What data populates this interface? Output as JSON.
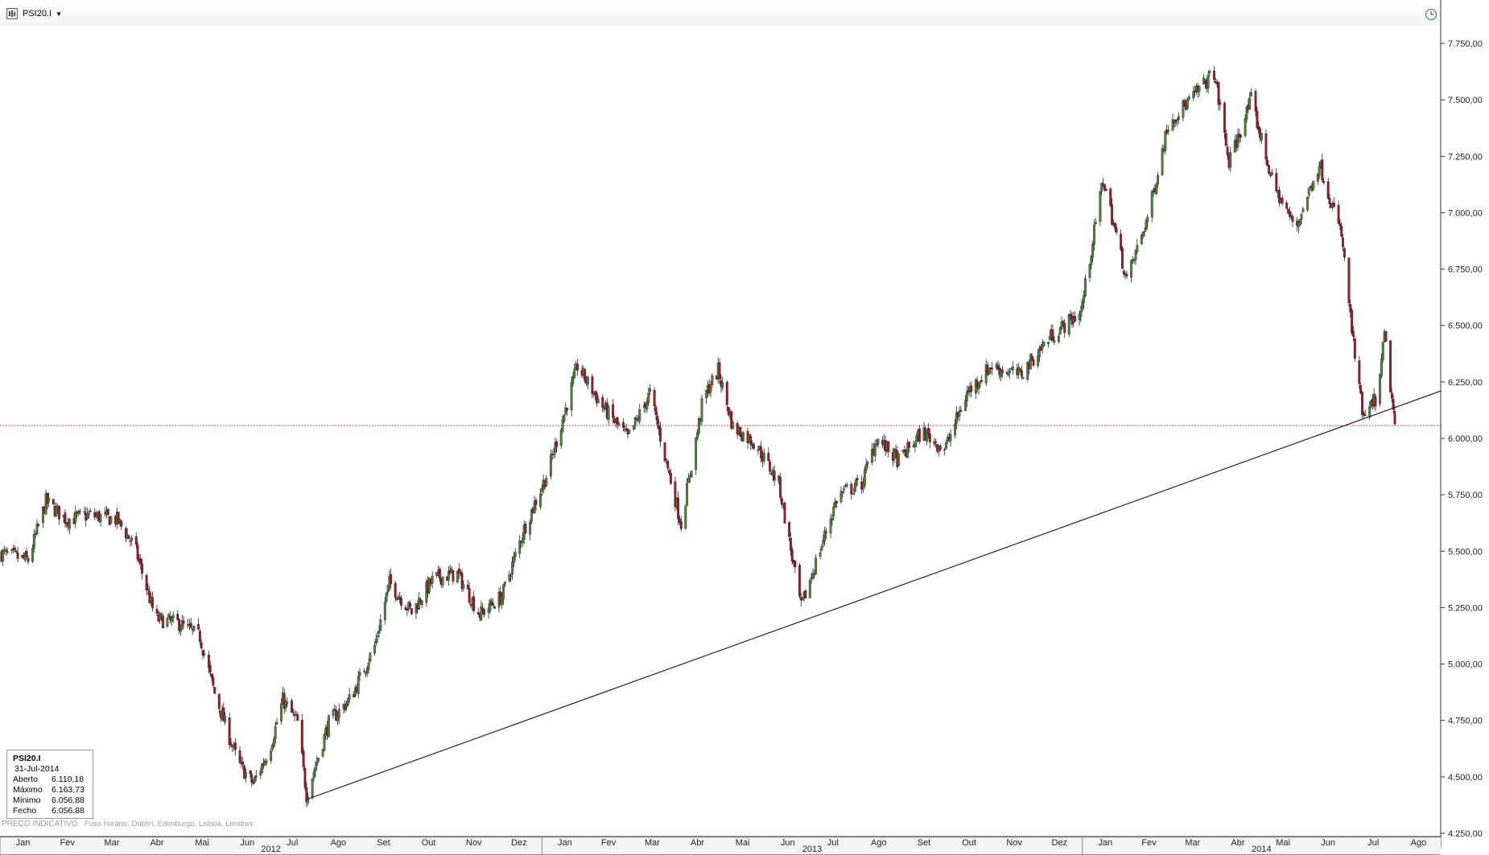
{
  "toolbar": {
    "symbol": "PSI20.I",
    "dropdown_icon": "caret-down-icon",
    "settings_icon": "clock-icon"
  },
  "footer": {
    "note": "PREÇO INDICATIVO",
    "timezone": "Fuso horário: Dublin, Edimburgo, Lisboa, Londres"
  },
  "info_box": {
    "symbol": "PSI20.I",
    "date": "31-Jul-2014",
    "rows": [
      {
        "label": "Aberto",
        "value": "6.110,18"
      },
      {
        "label": "Máximo",
        "value": "6.163,73"
      },
      {
        "label": "Mínimo",
        "value": "6.056,88"
      },
      {
        "label": "Fecho",
        "value": "6.056,88"
      }
    ]
  },
  "colors": {
    "up": "#4f7f3a",
    "down": "#9b1b2a",
    "wick": "#222222",
    "hline": "#e0403c",
    "trend": "#222222",
    "axis": "#333333"
  },
  "chart_data": {
    "type": "candlestick",
    "title": "PSI20.I",
    "x_range": [
      "2012-01-01",
      "2014-08-31"
    ],
    "ylim": [
      4250,
      7800
    ],
    "y_ticks": [
      4250,
      4500,
      4750,
      5000,
      5250,
      5500,
      5750,
      6000,
      6250,
      6500,
      6750,
      7000,
      7250,
      7500,
      7750
    ],
    "y_tick_labels": [
      "4.250,00",
      "4.500,00",
      "4.750,00",
      "5.000,00",
      "5.250,00",
      "5.500,00",
      "5.750,00",
      "6.000,00",
      "6.250,00",
      "6.500,00",
      "6.750,00",
      "7.000,00",
      "7.250,00",
      "7.500,00",
      "7.750,00"
    ],
    "month_labels": [
      "Jan",
      "Fev",
      "Mar",
      "Abr",
      "Mai",
      "Jun",
      "Jul",
      "Ago",
      "Set",
      "Out",
      "Nov",
      "Dez",
      "Jan",
      "Fev",
      "Mar",
      "Abr",
      "Mai",
      "Jun",
      "Jul",
      "Ago",
      "Set",
      "Out",
      "Nov",
      "Dez",
      "Jan",
      "Fev",
      "Mar",
      "Abr",
      "Mai",
      "Jun",
      "Jul",
      "Ago"
    ],
    "year_labels": [
      "2012",
      "2013",
      "2014"
    ],
    "horizontal_line": {
      "value": 6056.88
    },
    "trendline": {
      "start": [
        "2012-07-26",
        4400
      ],
      "end": [
        "2014-08-31",
        6210
      ]
    },
    "close_path": [
      [
        "2012-01-02",
        5490
      ],
      [
        "2012-01-20",
        5460
      ],
      [
        "2012-02-01",
        5720
      ],
      [
        "2012-02-15",
        5640
      ],
      [
        "2012-03-01",
        5660
      ],
      [
        "2012-03-20",
        5640
      ],
      [
        "2012-04-01",
        5520
      ],
      [
        "2012-04-15",
        5200
      ],
      [
        "2012-05-01",
        5180
      ],
      [
        "2012-05-15",
        5120
      ],
      [
        "2012-05-25",
        4870
      ],
      [
        "2012-06-10",
        4560
      ],
      [
        "2012-06-20",
        4470
      ],
      [
        "2012-07-01",
        4620
      ],
      [
        "2012-07-10",
        4840
      ],
      [
        "2012-07-20",
        4740
      ],
      [
        "2012-07-26",
        4420
      ],
      [
        "2012-08-10",
        4740
      ],
      [
        "2012-08-25",
        4850
      ],
      [
        "2012-09-10",
        5080
      ],
      [
        "2012-09-20",
        5360
      ],
      [
        "2012-10-05",
        5230
      ],
      [
        "2012-10-20",
        5380
      ],
      [
        "2012-11-05",
        5400
      ],
      [
        "2012-11-20",
        5220
      ],
      [
        "2012-12-05",
        5300
      ],
      [
        "2012-12-20",
        5600
      ],
      [
        "2013-01-05",
        5850
      ],
      [
        "2013-01-25",
        6320
      ],
      [
        "2013-02-10",
        6150
      ],
      [
        "2013-02-28",
        6000
      ],
      [
        "2013-03-15",
        6200
      ],
      [
        "2013-04-05",
        5620
      ],
      [
        "2013-04-20",
        6180
      ],
      [
        "2013-04-30",
        6300
      ],
      [
        "2013-05-10",
        6050
      ],
      [
        "2013-05-25",
        5980
      ],
      [
        "2013-06-10",
        5800
      ],
      [
        "2013-06-25",
        5250
      ],
      [
        "2013-07-05",
        5450
      ],
      [
        "2013-07-20",
        5750
      ],
      [
        "2013-08-05",
        5800
      ],
      [
        "2013-08-15",
        6000
      ],
      [
        "2013-08-30",
        5900
      ],
      [
        "2013-09-15",
        6030
      ],
      [
        "2013-09-30",
        5950
      ],
      [
        "2013-10-15",
        6200
      ],
      [
        "2013-10-31",
        6320
      ],
      [
        "2013-11-20",
        6280
      ],
      [
        "2013-12-10",
        6450
      ],
      [
        "2013-12-31",
        6560
      ],
      [
        "2014-01-15",
        7150
      ],
      [
        "2014-01-31",
        6700
      ],
      [
        "2014-02-15",
        7000
      ],
      [
        "2014-02-28",
        7400
      ],
      [
        "2014-03-15",
        7500
      ],
      [
        "2014-03-31",
        7620
      ],
      [
        "2014-04-10",
        7220
      ],
      [
        "2014-04-25",
        7500
      ],
      [
        "2014-05-10",
        7120
      ],
      [
        "2014-05-25",
        6930
      ],
      [
        "2014-06-10",
        7220
      ],
      [
        "2014-06-25",
        6900
      ],
      [
        "2014-07-05",
        6300
      ],
      [
        "2014-07-10",
        6080
      ],
      [
        "2014-07-20",
        6200
      ],
      [
        "2014-07-24",
        6460
      ],
      [
        "2014-07-31",
        6057
      ]
    ]
  }
}
